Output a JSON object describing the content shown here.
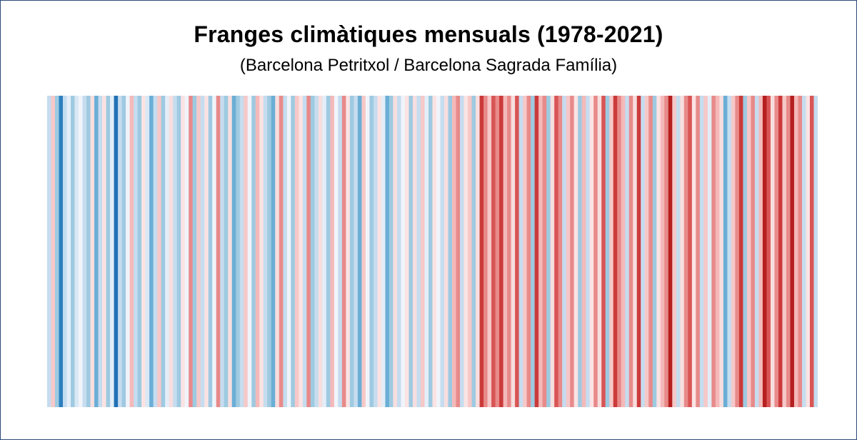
{
  "chart_data": {
    "type": "heatmap",
    "title": "Franges climàtiques mensuals (1978-2021)",
    "subtitle": "(Barcelona Petritxol / Barcelona Sagrada Família)",
    "x_start": "1978-01",
    "x_end": "2021-12",
    "stripes": [
      "#c6dcef",
      "#f6c8c8",
      "#9ecae1",
      "#2c7fc0",
      "#c6dcef",
      "#e3eef8",
      "#9ecae1",
      "#d9e8f5",
      "#f0f4fa",
      "#c6dcef",
      "#9ecae1",
      "#f7dede",
      "#6aaed6",
      "#c6dcef",
      "#fbe3e3",
      "#9ecae1",
      "#e3eef8",
      "#2171b5",
      "#c6dcef",
      "#9ecae1",
      "#f0f4fa",
      "#f4b9b9",
      "#c6dcef",
      "#9ecae1",
      "#fbe3e3",
      "#d9e8f5",
      "#6aaed6",
      "#c6dcef",
      "#f6c8c8",
      "#9ecae1",
      "#e3eef8",
      "#f7dede",
      "#c6dcef",
      "#9ecae1",
      "#fbe3e3",
      "#f0f4fa",
      "#e88a8a",
      "#9ecae1",
      "#f6c8c8",
      "#c6dcef",
      "#fbe3e3",
      "#9ecae1",
      "#f0f4fa",
      "#e88a8a",
      "#c6dcef",
      "#9ecae1",
      "#f7dede",
      "#6aaed6",
      "#9ecae1",
      "#c6dcef",
      "#f6c8c8",
      "#f0f4fa",
      "#9ecae1",
      "#f4b9b9",
      "#fbe3e3",
      "#c6dcef",
      "#9ecae1",
      "#6aaed6",
      "#f7dede",
      "#e88a8a",
      "#c6dcef",
      "#f0f4fa",
      "#9ecae1",
      "#f6c8c8",
      "#fbe3e3",
      "#c6dcef",
      "#e88a8a",
      "#9ecae1",
      "#c6dcef",
      "#f7dede",
      "#e3eef8",
      "#9ecae1",
      "#f4b9b9",
      "#f0f4fa",
      "#c6dcef",
      "#e88a8a",
      "#fbe3e3",
      "#9ecae1",
      "#c6dcef",
      "#6aaed6",
      "#f6c8c8",
      "#f0f4fa",
      "#9ecae1",
      "#c6dcef",
      "#fbe3e3",
      "#e3eef8",
      "#6aaed6",
      "#9ecae1",
      "#f7dede",
      "#c6dcef",
      "#f0f4fa",
      "#fbe3e3",
      "#9ecae1",
      "#f7dede",
      "#c6dcef",
      "#f6c8c8",
      "#e3eef8",
      "#9ecae1",
      "#fbe3e3",
      "#f0f4fa",
      "#c6dcef",
      "#f7dede",
      "#9ecae1",
      "#f4b9b9",
      "#e88a8a",
      "#c6dcef",
      "#fbe3e3",
      "#f6c8c8",
      "#9ecae1",
      "#f7dede",
      "#cb3a3a",
      "#e88a8a",
      "#f6c8c8",
      "#d95555",
      "#e88a8a",
      "#cb3a3a",
      "#f4b9b9",
      "#e88a8a",
      "#f7dede",
      "#d95555",
      "#c6dcef",
      "#f6c8c8",
      "#e88a8a",
      "#9ecae1",
      "#cb3a3a",
      "#f4b9b9",
      "#e88a8a",
      "#9ecae1",
      "#f7dede",
      "#d95555",
      "#e88a8a",
      "#c6dcef",
      "#f6c8c8",
      "#e88a8a",
      "#fbe3e3",
      "#9ecae1",
      "#f4b9b9",
      "#c6dcef",
      "#fbe3e3",
      "#e88a8a",
      "#f7dede",
      "#d95555",
      "#9ecae1",
      "#f6c8c8",
      "#cb3a3a",
      "#e88a8a",
      "#f4b9b9",
      "#c6dcef",
      "#e88a8a",
      "#f7dede",
      "#cb3a3a",
      "#c6dcef",
      "#f6c8c8",
      "#e88a8a",
      "#9ecae1",
      "#fbe3e3",
      "#f4b9b9",
      "#e88a8a",
      "#b51f1f",
      "#f6c8c8",
      "#c6dcef",
      "#f7dede",
      "#e88a8a",
      "#d95555",
      "#fbe3e3",
      "#e88a8a",
      "#c6dcef",
      "#f6c8c8",
      "#e3eef8",
      "#e88a8a",
      "#f4b9b9",
      "#f7dede",
      "#6aaed6",
      "#c6dcef",
      "#f6c8c8",
      "#e88a8a",
      "#cb3a3a",
      "#9ecae1",
      "#f6c8c8",
      "#e88a8a",
      "#c6dcef",
      "#f4b9b9",
      "#b51f1f",
      "#d95555",
      "#f7dede",
      "#e88a8a",
      "#cb3a3a",
      "#f6c8c8",
      "#e88a8a",
      "#b51f1f",
      "#f4b9b9",
      "#e88a8a",
      "#c6dcef",
      "#fbe3e3",
      "#d95555",
      "#c6dcef"
    ]
  }
}
